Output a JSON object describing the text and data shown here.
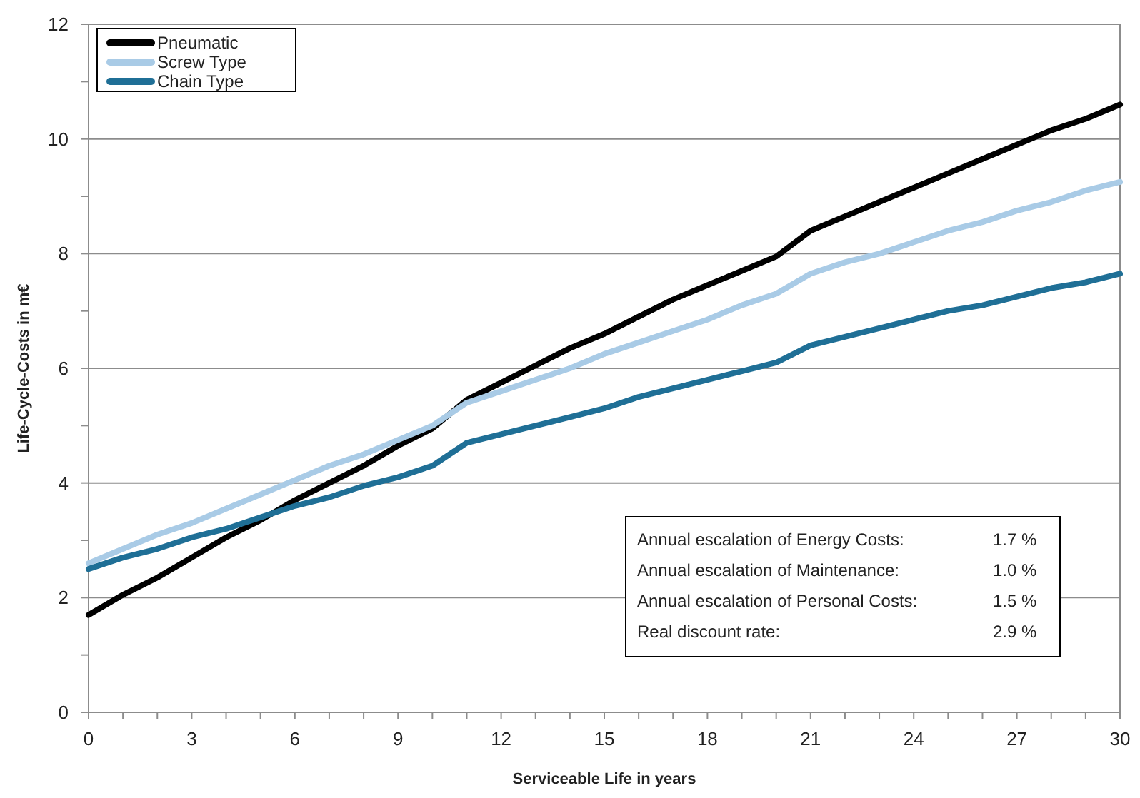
{
  "chart_data": {
    "type": "line",
    "xlabel": "Serviceable Life in years",
    "ylabel": "Life-Cycle-Costs in m€",
    "x": [
      0,
      1,
      2,
      3,
      4,
      5,
      6,
      7,
      8,
      9,
      10,
      11,
      12,
      13,
      14,
      15,
      16,
      17,
      18,
      19,
      20,
      21,
      22,
      23,
      24,
      25,
      26,
      27,
      28,
      29,
      30
    ],
    "series": [
      {
        "name": "Pneumatic",
        "color": "#000000",
        "values": [
          1.7,
          2.05,
          2.35,
          2.7,
          3.05,
          3.35,
          3.7,
          4.0,
          4.3,
          4.65,
          4.95,
          5.45,
          5.75,
          6.05,
          6.35,
          6.6,
          6.9,
          7.2,
          7.45,
          7.7,
          7.95,
          8.4,
          8.65,
          8.9,
          9.15,
          9.4,
          9.65,
          9.9,
          10.15,
          10.35,
          10.6
        ]
      },
      {
        "name": "Screw Type",
        "color": "#a9cbe6",
        "values": [
          2.6,
          2.85,
          3.1,
          3.3,
          3.55,
          3.8,
          4.05,
          4.3,
          4.5,
          4.75,
          5.0,
          5.4,
          5.6,
          5.8,
          6.0,
          6.25,
          6.45,
          6.65,
          6.85,
          7.1,
          7.3,
          7.65,
          7.85,
          8.0,
          8.2,
          8.4,
          8.55,
          8.75,
          8.9,
          9.1,
          9.25
        ]
      },
      {
        "name": "Chain Type",
        "color": "#1f6f96",
        "values": [
          2.5,
          2.7,
          2.85,
          3.05,
          3.2,
          3.4,
          3.6,
          3.75,
          3.95,
          4.1,
          4.3,
          4.7,
          4.85,
          5.0,
          5.15,
          5.3,
          5.5,
          5.65,
          5.8,
          5.95,
          6.1,
          6.4,
          6.55,
          6.7,
          6.85,
          7.0,
          7.1,
          7.25,
          7.4,
          7.5,
          7.65
        ]
      }
    ],
    "xlim": [
      0,
      30
    ],
    "xticks": [
      0,
      {
        "value": 1,
        "label": null
      },
      {
        "value": 2,
        "label": null
      },
      3,
      {
        "value": 4,
        "label": null
      },
      {
        "value": 5,
        "label": null
      },
      6,
      {
        "value": 7,
        "label": null
      },
      {
        "value": 8,
        "label": null
      },
      9,
      {
        "value": 10,
        "label": null
      },
      {
        "value": 11,
        "label": null
      },
      12,
      {
        "value": 13,
        "label": null
      },
      {
        "value": 14,
        "label": null
      },
      15,
      {
        "value": 16,
        "label": null
      },
      {
        "value": 17,
        "label": null
      },
      18,
      {
        "value": 19,
        "label": null
      },
      {
        "value": 20,
        "label": null
      },
      21,
      {
        "value": 22,
        "label": null
      },
      {
        "value": 23,
        "label": null
      },
      24,
      {
        "value": 25,
        "label": null
      },
      {
        "value": 26,
        "label": null
      },
      27,
      {
        "value": 28,
        "label": null
      },
      {
        "value": 29,
        "label": null
      },
      30
    ],
    "ylim": [
      0,
      12
    ],
    "yticks": [
      0,
      {
        "value": 1,
        "label": null
      },
      2,
      {
        "value": 3,
        "label": null
      },
      4,
      {
        "value": 5,
        "label": null
      },
      6,
      {
        "value": 7,
        "label": null
      },
      8,
      {
        "value": 9,
        "label": null
      },
      10,
      {
        "value": 11,
        "label": null
      },
      12
    ],
    "grid": "y",
    "legend": "top left",
    "marker": "none",
    "line_style": "solid",
    "annotations": [
      "Annual escalation of Energy Costs: 1.7 %",
      "Annual escalation of Maintenance: 1.0 %",
      "Annual escalation of Personal Costs: 1.5 %",
      "Real discount rate: 2.9 %"
    ]
  }
}
